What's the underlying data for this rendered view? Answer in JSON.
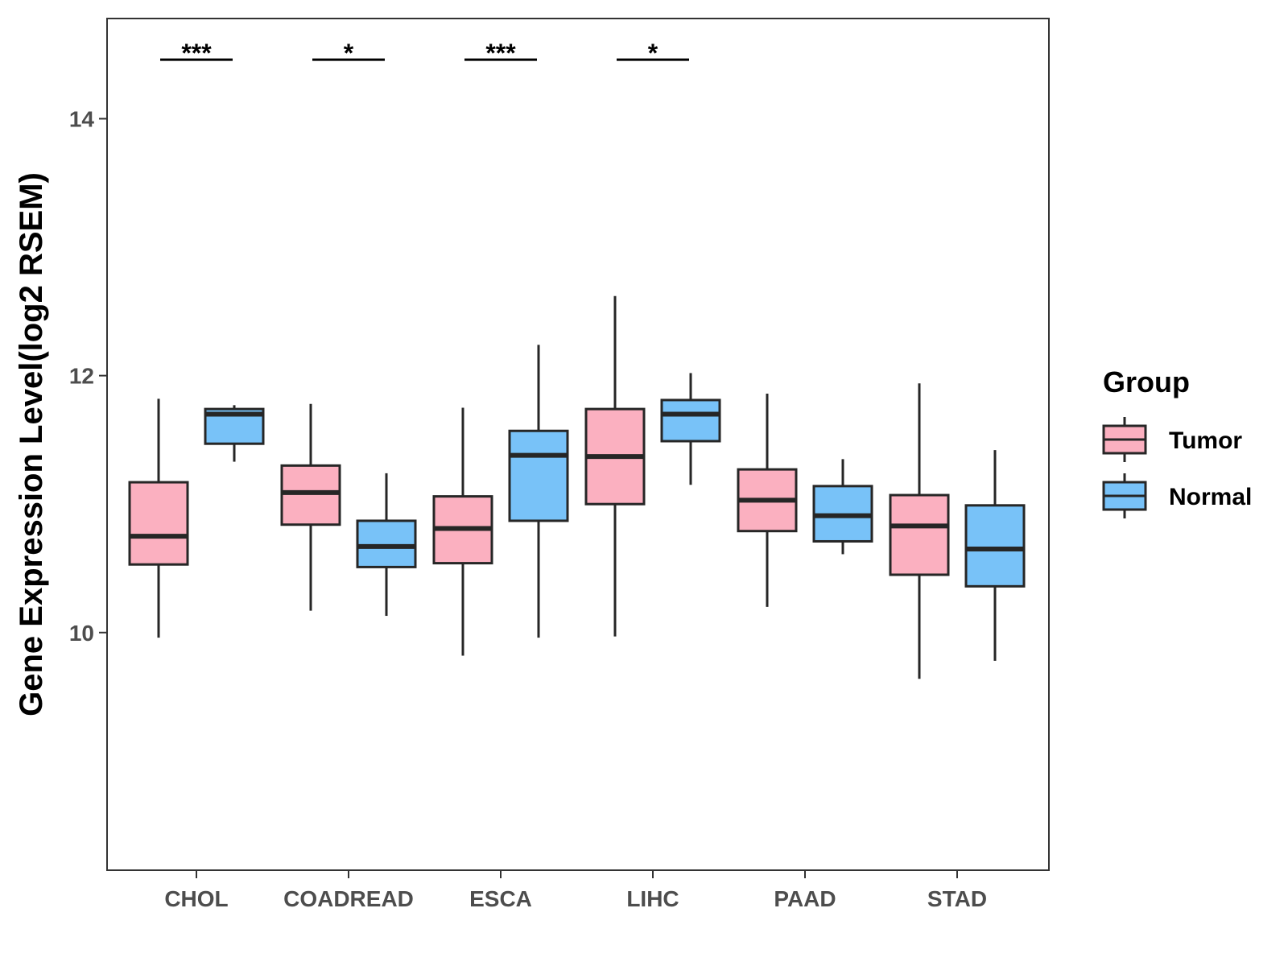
{
  "chart_data": {
    "type": "boxplot",
    "title": "",
    "xlabel": "",
    "ylabel": "Gene Expression Level(log2 RSEM)",
    "ylim": [
      8.15,
      14.78
    ],
    "yticks": [
      10,
      12,
      14
    ],
    "ytick_labels": [
      "10",
      "12",
      "14"
    ],
    "grid": false,
    "categories": [
      "CHOL",
      "COADREAD",
      "ESCA",
      "LIHC",
      "PAAD",
      "STAD"
    ],
    "series": [
      {
        "name": "Tumor",
        "color": "#FBB0C0",
        "boxes": [
          {
            "min": 9.96,
            "q1": 10.53,
            "median": 10.75,
            "q3": 11.17,
            "max": 11.82
          },
          {
            "min": 10.17,
            "q1": 10.84,
            "median": 11.09,
            "q3": 11.3,
            "max": 11.78
          },
          {
            "min": 9.82,
            "q1": 10.54,
            "median": 10.81,
            "q3": 11.06,
            "max": 11.75
          },
          {
            "min": 9.97,
            "q1": 11.0,
            "median": 11.37,
            "q3": 11.74,
            "max": 12.62
          },
          {
            "min": 10.2,
            "q1": 10.79,
            "median": 11.03,
            "q3": 11.27,
            "max": 11.86
          },
          {
            "min": 9.64,
            "q1": 10.45,
            "median": 10.83,
            "q3": 11.07,
            "max": 11.94
          }
        ]
      },
      {
        "name": "Normal",
        "color": "#78C2F8",
        "boxes": [
          {
            "min": 11.33,
            "q1": 11.47,
            "median": 11.7,
            "q3": 11.74,
            "max": 11.77
          },
          {
            "min": 10.13,
            "q1": 10.51,
            "median": 10.67,
            "q3": 10.87,
            "max": 11.24
          },
          {
            "min": 9.96,
            "q1": 10.87,
            "median": 11.38,
            "q3": 11.57,
            "max": 12.24
          },
          {
            "min": 11.15,
            "q1": 11.49,
            "median": 11.7,
            "q3": 11.81,
            "max": 12.02
          },
          {
            "min": 10.61,
            "q1": 10.71,
            "median": 10.91,
            "q3": 11.14,
            "max": 11.35
          },
          {
            "min": 9.78,
            "q1": 10.36,
            "median": 10.65,
            "q3": 10.99,
            "max": 11.42
          }
        ]
      }
    ],
    "annotations": [
      {
        "category": "CHOL",
        "label": "***",
        "y": 14.46
      },
      {
        "category": "COADREAD",
        "label": "*",
        "y": 14.46
      },
      {
        "category": "ESCA",
        "label": "***",
        "y": 14.46
      },
      {
        "category": "LIHC",
        "label": "*",
        "y": 14.46
      }
    ],
    "legend": {
      "title": "Group",
      "position": "right",
      "entries": [
        "Tumor",
        "Normal"
      ]
    }
  }
}
